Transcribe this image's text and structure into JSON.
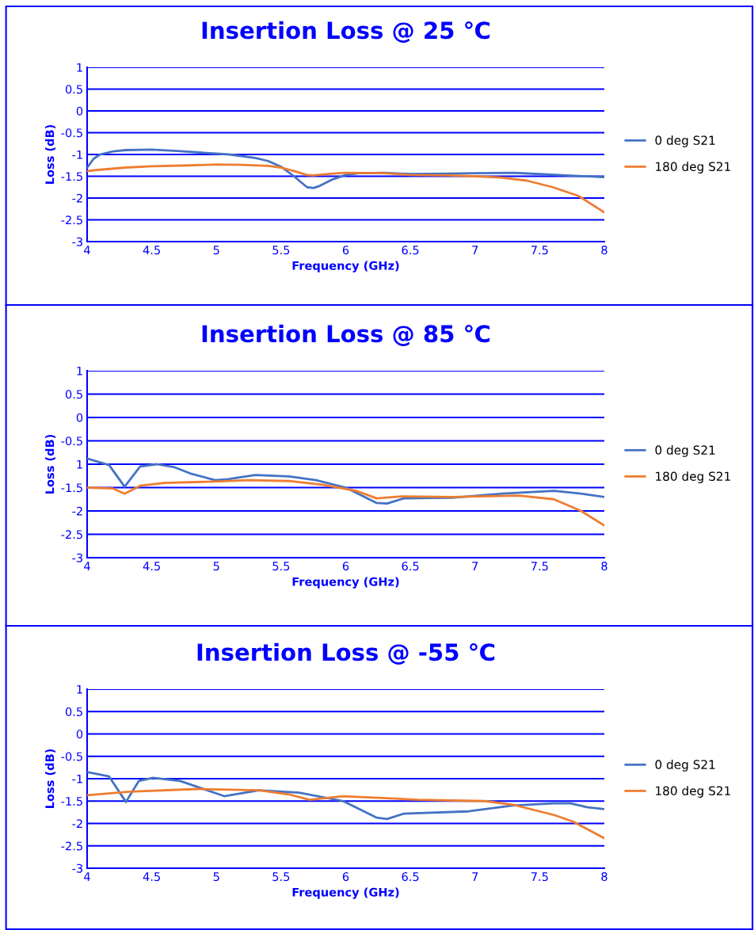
{
  "chart_data": [
    {
      "type": "line",
      "title": "Insertion Loss @ 25 ℃",
      "xlabel": "Frequency (GHz)",
      "ylabel": "Loss (dB)",
      "xlim": [
        4,
        8
      ],
      "xticks": [
        4,
        4.5,
        5,
        5.5,
        6,
        6.5,
        7,
        7.5,
        8
      ],
      "ylim": [
        -3,
        1
      ],
      "yticks": [
        -3,
        -2.5,
        -2,
        -1.5,
        -1,
        -0.5,
        0,
        0.5,
        1
      ],
      "grid": "y",
      "legend": "right",
      "series": [
        {
          "name": "0 deg S21",
          "color": "#4472c4",
          "x": [
            4.0,
            4.05,
            4.1,
            4.2,
            4.3,
            4.5,
            4.7,
            4.9,
            5.1,
            5.3,
            5.4,
            5.5,
            5.6,
            5.7,
            5.75,
            5.8,
            5.9,
            6.0,
            6.1,
            6.3,
            6.5,
            6.8,
            7.0,
            7.3,
            7.5,
            7.7,
            8.0
          ],
          "values": [
            -1.3,
            -1.1,
            -1.0,
            -0.93,
            -0.9,
            -0.89,
            -0.92,
            -0.96,
            -1.0,
            -1.08,
            -1.15,
            -1.28,
            -1.5,
            -1.75,
            -1.77,
            -1.72,
            -1.57,
            -1.47,
            -1.43,
            -1.42,
            -1.45,
            -1.44,
            -1.43,
            -1.42,
            -1.45,
            -1.48,
            -1.52
          ]
        },
        {
          "name": "180 deg S21",
          "color": "#ed7d31",
          "x": [
            4.0,
            4.1,
            4.3,
            4.5,
            4.8,
            5.0,
            5.2,
            5.4,
            5.5,
            5.6,
            5.7,
            5.75,
            5.9,
            6.0,
            6.3,
            6.5,
            6.8,
            7.0,
            7.2,
            7.4,
            7.6,
            7.8,
            8.0
          ],
          "values": [
            -1.38,
            -1.35,
            -1.3,
            -1.27,
            -1.25,
            -1.23,
            -1.24,
            -1.26,
            -1.3,
            -1.38,
            -1.47,
            -1.48,
            -1.44,
            -1.42,
            -1.43,
            -1.47,
            -1.48,
            -1.5,
            -1.53,
            -1.6,
            -1.75,
            -1.95,
            -2.33
          ]
        }
      ]
    },
    {
      "type": "line",
      "title": "Insertion Loss @ 85 ℃",
      "xlabel": "Frequency (GHz)",
      "ylabel": "Loss (dB)",
      "xlim": [
        4,
        8
      ],
      "xticks": [
        4,
        4.5,
        5,
        5.5,
        6,
        6.5,
        7,
        7.5,
        8
      ],
      "ylim": [
        -3,
        1
      ],
      "yticks": [
        -3,
        -2.5,
        -2,
        -1.5,
        {
          "value": -1,
          "label": "1"
        },
        -0.5,
        0,
        0.5,
        1
      ],
      "grid": "y",
      "legend": "right",
      "series": [
        {
          "name": "0 deg S21",
          "color": "#4472c4",
          "x": [
            4.0,
            4.17,
            4.29,
            4.41,
            4.54,
            4.67,
            4.8,
            4.99,
            5.09,
            5.3,
            5.56,
            5.77,
            6.0,
            6.24,
            6.32,
            6.45,
            6.82,
            7.21,
            7.61,
            7.82,
            8.0
          ],
          "values": [
            -0.88,
            -1.02,
            -1.48,
            -1.05,
            -1.0,
            -1.06,
            -1.2,
            -1.34,
            -1.32,
            -1.23,
            -1.26,
            -1.34,
            -1.5,
            -1.83,
            -1.84,
            -1.73,
            -1.72,
            -1.63,
            -1.57,
            -1.63,
            -1.7
          ]
        },
        {
          "name": "180 deg S21",
          "color": "#ed7d31",
          "x": [
            4.0,
            4.2,
            4.29,
            4.41,
            4.6,
            4.99,
            5.25,
            5.56,
            5.82,
            6.08,
            6.24,
            6.43,
            6.82,
            7.34,
            7.61,
            7.82,
            8.0
          ],
          "values": [
            -1.5,
            -1.52,
            -1.63,
            -1.46,
            -1.4,
            -1.37,
            -1.34,
            -1.36,
            -1.44,
            -1.57,
            -1.73,
            -1.69,
            -1.7,
            -1.67,
            -1.75,
            -2.0,
            -2.31
          ]
        }
      ]
    },
    {
      "type": "line",
      "title": "Insertion Loss @ -55 ℃",
      "xlabel": "Frequency (GHz)",
      "ylabel": "Loss (dB)",
      "xlim": [
        4,
        8
      ],
      "xticks": [
        4,
        4.5,
        5,
        5.5,
        6,
        6.5,
        7,
        7.5,
        8
      ],
      "ylim": [
        -3,
        1
      ],
      "yticks": [
        -3,
        -2.5,
        -2,
        -1.5,
        -1,
        -0.5,
        0,
        0.5,
        1
      ],
      "grid": "y",
      "legend": "right",
      "series": [
        {
          "name": "0 deg S21",
          "color": "#4472c4",
          "x": [
            4.0,
            4.17,
            4.3,
            4.4,
            4.51,
            4.72,
            4.88,
            5.06,
            5.33,
            5.64,
            5.98,
            6.24,
            6.32,
            6.45,
            6.95,
            7.29,
            7.61,
            7.74,
            7.87,
            8.0
          ],
          "values": [
            -0.85,
            -0.95,
            -1.52,
            -1.05,
            -0.98,
            -1.05,
            -1.21,
            -1.39,
            -1.26,
            -1.31,
            -1.5,
            -1.87,
            -1.9,
            -1.78,
            -1.73,
            -1.6,
            -1.55,
            -1.55,
            -1.64,
            -1.68
          ]
        },
        {
          "name": "180 deg S21",
          "color": "#ed7d31",
          "x": [
            4.0,
            4.33,
            4.85,
            5.33,
            5.56,
            5.72,
            5.98,
            6.56,
            7.08,
            7.29,
            7.61,
            7.76,
            8.0
          ],
          "values": [
            -1.37,
            -1.29,
            -1.23,
            -1.26,
            -1.35,
            -1.47,
            -1.39,
            -1.47,
            -1.5,
            -1.58,
            -1.81,
            -1.96,
            -2.33
          ]
        }
      ]
    }
  ]
}
